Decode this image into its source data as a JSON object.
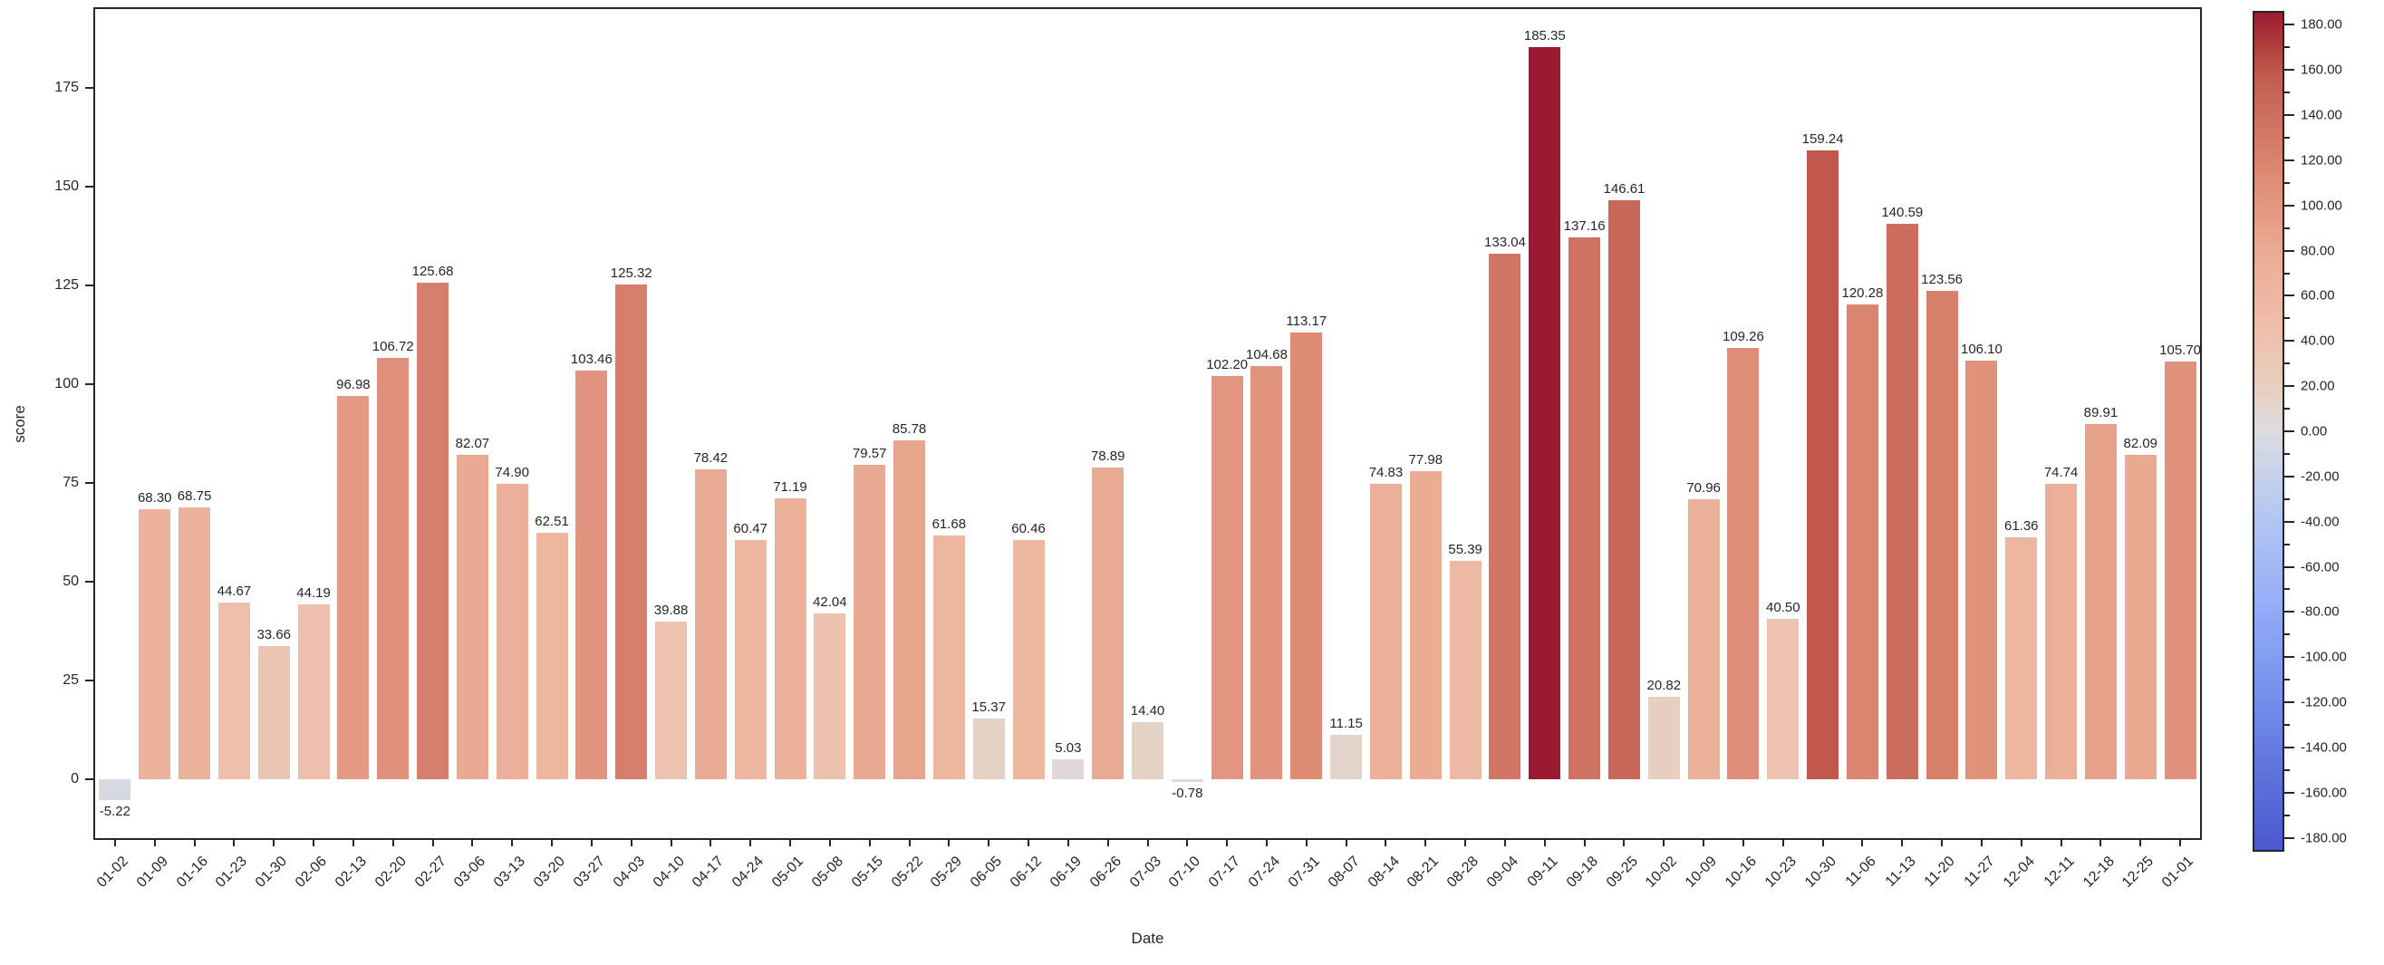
{
  "figure": {
    "background": "#ffffff",
    "frame_color": "#262626",
    "text_color": "#262626"
  },
  "chart_data": {
    "type": "bar",
    "title": "",
    "xlabel": "Date",
    "ylabel": "score",
    "categories": [
      "01-02",
      "01-09",
      "01-16",
      "01-23",
      "01-30",
      "02-06",
      "02-13",
      "02-20",
      "02-27",
      "03-06",
      "03-13",
      "03-20",
      "03-27",
      "04-03",
      "04-10",
      "04-17",
      "04-24",
      "05-01",
      "05-08",
      "05-15",
      "05-22",
      "05-29",
      "06-05",
      "06-12",
      "06-19",
      "06-26",
      "07-03",
      "07-10",
      "07-17",
      "07-24",
      "07-31",
      "08-07",
      "08-14",
      "08-21",
      "08-28",
      "09-04",
      "09-11",
      "09-18",
      "09-25",
      "10-02",
      "10-09",
      "10-16",
      "10-23",
      "10-30",
      "11-06",
      "11-13",
      "11-20",
      "11-27",
      "12-04",
      "12-11",
      "12-18",
      "12-25",
      "01-01"
    ],
    "values": [
      -5.22,
      68.3,
      68.75,
      44.67,
      33.66,
      44.19,
      96.98,
      106.72,
      125.68,
      82.07,
      74.9,
      62.51,
      103.46,
      125.32,
      39.88,
      78.42,
      60.47,
      71.19,
      42.04,
      79.57,
      85.78,
      61.68,
      15.37,
      60.46,
      5.03,
      78.89,
      14.4,
      -0.78,
      102.2,
      104.68,
      113.17,
      11.15,
      74.83,
      77.98,
      55.39,
      133.04,
      185.35,
      137.16,
      146.61,
      20.82,
      70.96,
      109.26,
      40.5,
      159.24,
      120.28,
      140.59,
      123.56,
      106.1,
      61.36,
      74.74,
      89.91,
      82.09,
      105.7
    ],
    "value_label_decimals": 2,
    "ylim": [
      -14.9,
      195.0
    ],
    "yticks": [
      0,
      25,
      50,
      75,
      100,
      125,
      150,
      175
    ],
    "grid": false,
    "legend": "none",
    "colormap": {
      "name": "coolwarm-diverging",
      "vmin": -185.35,
      "vmax": 185.35,
      "anchors": [
        [
          0.0,
          74,
          88,
          205
        ],
        [
          0.1,
          96,
          118,
          222
        ],
        [
          0.2,
          122,
          148,
          238
        ],
        [
          0.3,
          150,
          175,
          247
        ],
        [
          0.4,
          180,
          199,
          242
        ],
        [
          0.45,
          200,
          210,
          233
        ],
        [
          0.5,
          220,
          220,
          223
        ],
        [
          0.55,
          232,
          207,
          192
        ],
        [
          0.625,
          238,
          190,
          170
        ],
        [
          0.7,
          235,
          175,
          153
        ],
        [
          0.775,
          227,
          150,
          127
        ],
        [
          0.85,
          211,
          122,
          103
        ],
        [
          0.925,
          194,
          92,
          79
        ],
        [
          0.97,
          173,
          55,
          60
        ],
        [
          1.0,
          155,
          26,
          51
        ]
      ]
    },
    "colorbar": {
      "tick_min": -180,
      "tick_max": 180,
      "major_step": 20,
      "minor_step": 10,
      "label_decimals": 2
    }
  }
}
